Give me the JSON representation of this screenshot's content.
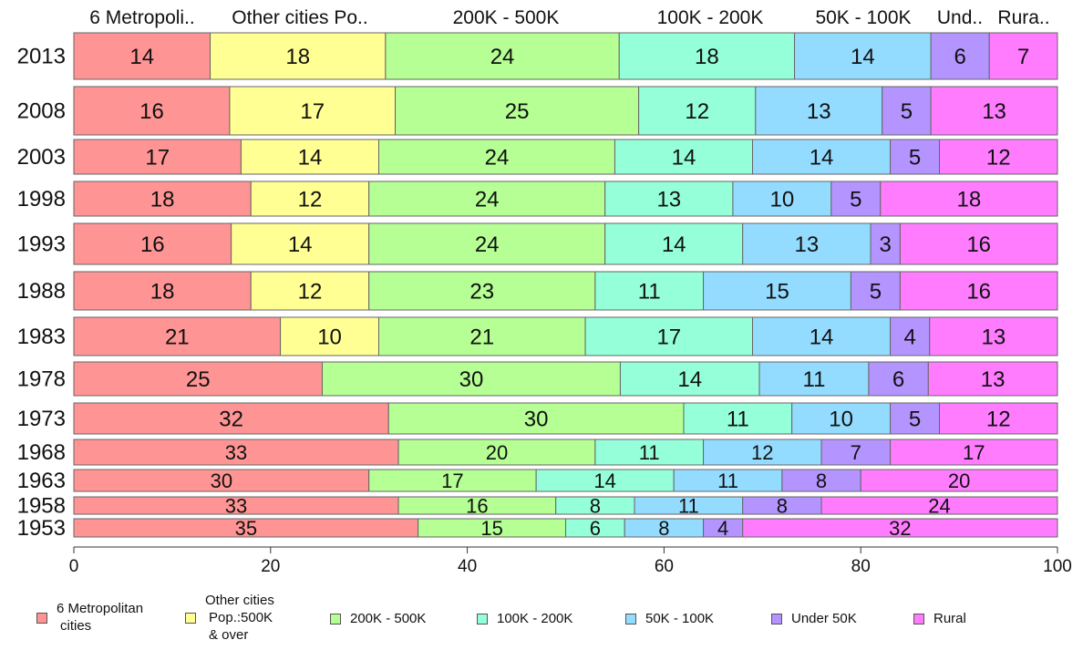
{
  "chart_data": {
    "type": "bar",
    "orientation": "horizontal",
    "stacked": true,
    "xlim": [
      0,
      100
    ],
    "xticks": [
      0,
      20,
      40,
      60,
      80,
      100
    ],
    "top_headers": [
      "6 Metropoli..",
      "Other cities Po..",
      "200K - 500K",
      "100K - 200K",
      "50K - 100K",
      "Und..",
      "Rura.."
    ],
    "series": [
      {
        "name": "6 Metropolitan cities",
        "legend_lines": [
          "6 Metropolitan",
          "cities"
        ],
        "color": "#ff9494"
      },
      {
        "name": "Other cities Pop.:500K & over",
        "legend_lines": [
          "Other cities",
          "Pop.:500K",
          "& over"
        ],
        "color": "#ffff94"
      },
      {
        "name": "200K - 500K",
        "legend_lines": [
          "200K - 500K"
        ],
        "color": "#b5ff94"
      },
      {
        "name": "100K - 200K",
        "legend_lines": [
          "100K - 200K"
        ],
        "color": "#94ffd8"
      },
      {
        "name": "50K - 100K",
        "legend_lines": [
          "50K - 100K"
        ],
        "color": "#94dcff"
      },
      {
        "name": "Under 50K",
        "legend_lines": [
          "Under 50K"
        ],
        "color": "#b494ff"
      },
      {
        "name": "Rural",
        "legend_lines": [
          "Rural"
        ],
        "color": "#ff7cff"
      }
    ],
    "rows": [
      {
        "year": "2013",
        "values": [
          14,
          18,
          24,
          18,
          14,
          6,
          7
        ],
        "labels": [
          "14",
          "18",
          "24",
          "18",
          "14",
          "6",
          "7"
        ]
      },
      {
        "year": "2008",
        "values": [
          16,
          17,
          25,
          12,
          13,
          5,
          13
        ],
        "labels": [
          "16",
          "17",
          "25",
          "12",
          "13",
          "5",
          "13"
        ]
      },
      {
        "year": "2003",
        "values": [
          17,
          14,
          24,
          14,
          14,
          5,
          12
        ],
        "labels": [
          "17",
          "14",
          "24",
          "14",
          "14",
          "5",
          "12"
        ]
      },
      {
        "year": "1998",
        "values": [
          18,
          12,
          24,
          13,
          10,
          5,
          18
        ],
        "labels": [
          "18",
          "12",
          "24",
          "13",
          "10",
          "5",
          "18"
        ]
      },
      {
        "year": "1993",
        "values": [
          16,
          14,
          24,
          14,
          13,
          3,
          16
        ],
        "labels": [
          "16",
          "14",
          "24",
          "14",
          "13",
          "3",
          "16"
        ]
      },
      {
        "year": "1988",
        "values": [
          18,
          12,
          23,
          11,
          15,
          5,
          16
        ],
        "labels": [
          "18",
          "12",
          "23",
          "11",
          "15",
          "5",
          "16"
        ]
      },
      {
        "year": "1983",
        "values": [
          21,
          10,
          21,
          17,
          14,
          4,
          13
        ],
        "labels": [
          "21",
          "10",
          "21",
          "17",
          "14",
          "4",
          "13"
        ]
      },
      {
        "year": "1978",
        "values": [
          25,
          0,
          30,
          14,
          11,
          6,
          13
        ],
        "labels": [
          "25",
          "",
          "30",
          "14",
          "11",
          "6",
          "13"
        ]
      },
      {
        "year": "1973",
        "values": [
          32,
          0,
          30,
          11,
          10,
          5,
          12
        ],
        "labels": [
          "32",
          "",
          "30",
          "11",
          "10",
          "5",
          "12"
        ]
      },
      {
        "year": "1968",
        "values": [
          33,
          0,
          20,
          11,
          12,
          7,
          17
        ],
        "labels": [
          "33",
          "",
          "20",
          "11",
          "12",
          "7",
          "17"
        ]
      },
      {
        "year": "1963",
        "values": [
          30,
          0,
          17,
          14,
          11,
          8,
          20
        ],
        "labels": [
          "30",
          "",
          "17",
          "14",
          "11",
          "8",
          "20"
        ]
      },
      {
        "year": "1958",
        "values": [
          33,
          0,
          16,
          8,
          11,
          8,
          24
        ],
        "labels": [
          "33",
          "",
          "16",
          "8",
          "11",
          "8",
          "24"
        ]
      },
      {
        "year": "1953",
        "values": [
          35,
          0,
          15,
          6,
          8,
          4,
          32
        ],
        "labels": [
          "35",
          "",
          "15",
          "6",
          "8",
          "4",
          "32"
        ]
      }
    ]
  }
}
